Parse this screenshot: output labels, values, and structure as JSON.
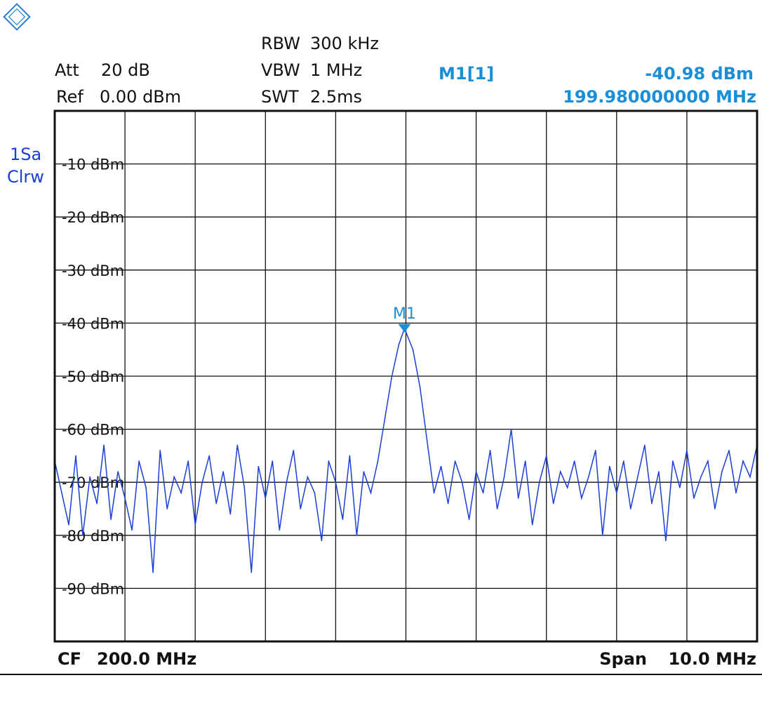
{
  "header": {
    "att_label": "Att",
    "att_value": "20 dB",
    "ref_label": "Ref",
    "ref_value": "0.00 dBm",
    "rbw_label": "RBW",
    "rbw_value": "300 kHz",
    "vbw_label": "VBW",
    "vbw_value": "1 MHz",
    "swt_label": "SWT",
    "swt_value": "2.5ms",
    "marker_name": "M1[1]",
    "marker_level": "-40.98 dBm",
    "marker_freq": "199.980000000 MHz"
  },
  "trace": {
    "line1": "1Sa",
    "line2": "Clrw"
  },
  "footer": {
    "cf_label": "CF",
    "cf_value": "200.0 MHz",
    "span_label": "Span",
    "span_value": "10.0 MHz"
  },
  "colors": {
    "trace": "#1b3fd6",
    "marker": "#1a8fd8",
    "grid": "#111111",
    "logo": "#2a7fd0"
  },
  "icons": {
    "logo": "rohde-schwarz-logo-icon",
    "marker": "marker-triangle-icon"
  },
  "chart_data": {
    "type": "line",
    "title": "",
    "xlabel": "",
    "ylabel": "",
    "xlim": [
      195.0,
      205.0
    ],
    "ylim": [
      -100,
      0
    ],
    "grid": true,
    "ytick_labels": [
      "-10 dBm",
      "-20 dBm",
      "-30 dBm",
      "-40 dBm",
      "-50 dBm",
      "-60 dBm",
      "-70 dBm",
      "-80 dBm",
      "-90 dBm"
    ],
    "ytick_values": [
      -10,
      -20,
      -30,
      -40,
      -50,
      -60,
      -70,
      -80,
      -90
    ],
    "marker": {
      "label": "M1",
      "x": 199.98,
      "y": -40.98
    },
    "series": [
      {
        "x": [
          195.0,
          195.1,
          195.2,
          195.3,
          195.4,
          195.5,
          195.6,
          195.7,
          195.8,
          195.9,
          196.0,
          196.1,
          196.2,
          196.3,
          196.4,
          196.5,
          196.6,
          196.7,
          196.8,
          196.9,
          197.0,
          197.1,
          197.2,
          197.3,
          197.4,
          197.5,
          197.6,
          197.7,
          197.8,
          197.9,
          198.0,
          198.1,
          198.2,
          198.3,
          198.4,
          198.5,
          198.6,
          198.7,
          198.8,
          198.9,
          199.0,
          199.1,
          199.2,
          199.3,
          199.4,
          199.5,
          199.6,
          199.7,
          199.8,
          199.9,
          199.98,
          200.1,
          200.2,
          200.3,
          200.4,
          200.5,
          200.6,
          200.7,
          200.8,
          200.9,
          201.0,
          201.1,
          201.2,
          201.3,
          201.4,
          201.5,
          201.6,
          201.7,
          201.8,
          201.9,
          202.0,
          202.1,
          202.2,
          202.3,
          202.4,
          202.5,
          202.6,
          202.7,
          202.8,
          202.9,
          203.0,
          203.1,
          203.2,
          203.3,
          203.4,
          203.5,
          203.6,
          203.7,
          203.8,
          203.9,
          204.0,
          204.1,
          204.2,
          204.3,
          204.4,
          204.5,
          204.6,
          204.7,
          204.8,
          204.9,
          205.0
        ],
        "y": [
          -66,
          -72,
          -78,
          -65,
          -80,
          -69,
          -74,
          -63,
          -77,
          -68,
          -73,
          -79,
          -66,
          -71,
          -87,
          -64,
          -75,
          -69,
          -72,
          -66,
          -78,
          -70,
          -65,
          -74,
          -68,
          -76,
          -63,
          -71,
          -87,
          -67,
          -73,
          -66,
          -79,
          -70,
          -64,
          -75,
          -69,
          -72,
          -81,
          -66,
          -70,
          -77,
          -65,
          -80,
          -68,
          -72,
          -66,
          -58,
          -50,
          -44,
          -41,
          -45,
          -52,
          -62,
          -72,
          -67,
          -74,
          -66,
          -70,
          -77,
          -68,
          -72,
          -64,
          -75,
          -69,
          -60,
          -73,
          -66,
          -78,
          -70,
          -65,
          -74,
          -68,
          -71,
          -66,
          -73,
          -69,
          -64,
          -80,
          -67,
          -72,
          -66,
          -75,
          -69,
          -63,
          -74,
          -68,
          -81,
          -66,
          -71,
          -64,
          -73,
          -69,
          -66,
          -75,
          -68,
          -64,
          -72,
          -66,
          -69,
          -63
        ]
      }
    ]
  }
}
